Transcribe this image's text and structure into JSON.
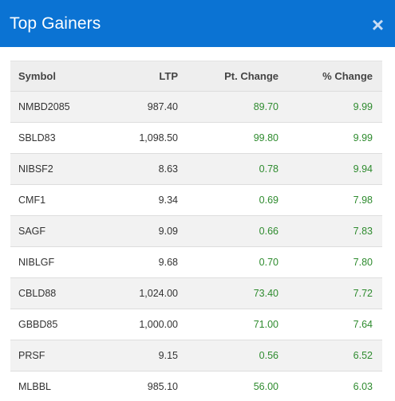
{
  "header": {
    "title": "Top Gainers",
    "close_glyph": "×"
  },
  "table": {
    "columns": [
      "Symbol",
      "LTP",
      "Pt. Change",
      "% Change"
    ],
    "rows": [
      {
        "symbol": "NMBD2085",
        "ltp": "987.40",
        "pt_change": "89.70",
        "pct_change": "9.99"
      },
      {
        "symbol": "SBLD83",
        "ltp": "1,098.50",
        "pt_change": "99.80",
        "pct_change": "9.99"
      },
      {
        "symbol": "NIBSF2",
        "ltp": "8.63",
        "pt_change": "0.78",
        "pct_change": "9.94"
      },
      {
        "symbol": "CMF1",
        "ltp": "9.34",
        "pt_change": "0.69",
        "pct_change": "7.98"
      },
      {
        "symbol": "SAGF",
        "ltp": "9.09",
        "pt_change": "0.66",
        "pct_change": "7.83"
      },
      {
        "symbol": "NIBLGF",
        "ltp": "9.68",
        "pt_change": "0.70",
        "pct_change": "7.80"
      },
      {
        "symbol": "CBLD88",
        "ltp": "1,024.00",
        "pt_change": "73.40",
        "pct_change": "7.72"
      },
      {
        "symbol": "GBBD85",
        "ltp": "1,000.00",
        "pt_change": "71.00",
        "pct_change": "7.64"
      },
      {
        "symbol": "PRSF",
        "ltp": "9.15",
        "pt_change": "0.56",
        "pct_change": "6.52"
      },
      {
        "symbol": "MLBBL",
        "ltp": "985.10",
        "pt_change": "56.00",
        "pct_change": "6.03"
      }
    ]
  },
  "colors": {
    "header_bg": "#0b73d3",
    "gain_text": "#2e8b2e",
    "stripe": "#f2f2f2"
  },
  "icons": {
    "close": "close-icon"
  }
}
